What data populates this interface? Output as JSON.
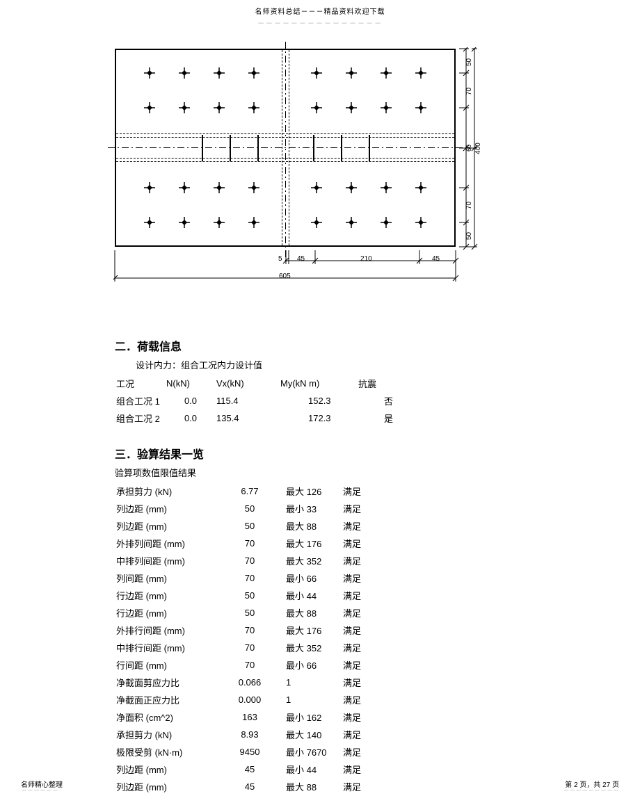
{
  "header": {
    "title": "名师资料总结－－－精品资料欢迎下载"
  },
  "diagram": {
    "plate_width": 605,
    "plate_height": 400,
    "dims_v": [
      {
        "label": "50"
      },
      {
        "label": "70"
      },
      {
        "label": "60"
      },
      {
        "label": "70"
      },
      {
        "label": "50"
      }
    ],
    "dim_v_total": "400",
    "dims_h": [
      {
        "label": "5"
      },
      {
        "label": "45"
      },
      {
        "label": "210"
      },
      {
        "label": "45"
      }
    ],
    "dim_h_total": "605"
  },
  "load": {
    "title": "二．荷载信息",
    "subtitle": "设计内力：组合工况内力设计值",
    "headers": [
      "工况",
      "N(kN)",
      "Vx(kN)",
      "My(kN m)",
      "抗震"
    ],
    "rows": [
      {
        "case": "组合工况 1",
        "n": "0.0",
        "vx": "115.4",
        "my": "152.3",
        "seismic": "否"
      },
      {
        "case": "组合工况 2",
        "n": "0.0",
        "vx": "135.4",
        "my": "172.3",
        "seismic": "是"
      }
    ]
  },
  "results": {
    "title": "三．验算结果一览",
    "header_line": "验算项数值限值结果",
    "ok": "满足",
    "rows": [
      {
        "item": "承担剪力 (kN)",
        "val": "6.77",
        "limit": "最大 126",
        "res": "满足"
      },
      {
        "item": "列边距 (mm)",
        "val": "50",
        "limit": "最小 33",
        "res": "满足"
      },
      {
        "item": "列边距 (mm)",
        "val": "50",
        "limit": "最大 88",
        "res": "满足"
      },
      {
        "item": "外排列间距 (mm)",
        "val": "70",
        "limit": "最大 176",
        "res": "满足"
      },
      {
        "item": "中排列间距 (mm)",
        "val": "70",
        "limit": "最大 352",
        "res": "满足"
      },
      {
        "item": "列间距 (mm)",
        "val": "70",
        "limit": "最小 66",
        "res": "满足"
      },
      {
        "item": "行边距 (mm)",
        "val": "50",
        "limit": "最小 44",
        "res": "满足"
      },
      {
        "item": "行边距 (mm)",
        "val": "50",
        "limit": "最大 88",
        "res": "满足"
      },
      {
        "item": "外排行间距 (mm)",
        "val": "70",
        "limit": "最大 176",
        "res": "满足"
      },
      {
        "item": "中排行间距 (mm)",
        "val": "70",
        "limit": "最大 352",
        "res": "满足"
      },
      {
        "item": "行间距 (mm)",
        "val": "70",
        "limit": "最小 66",
        "res": "满足"
      },
      {
        "item": "净截面剪应力比",
        "val": "0.066",
        "limit": "1",
        "res": "满足"
      },
      {
        "item": "净截面正应力比",
        "val": "0.000",
        "limit": "1",
        "res": "满足"
      },
      {
        "item": "净面积 (cm^2)",
        "val": "163",
        "limit": "最小 162",
        "res": "满足"
      },
      {
        "item": "承担剪力 (kN)",
        "val": "8.93",
        "limit": "最大 140",
        "res": "满足"
      },
      {
        "item": "极限受剪 (kN·m)",
        "val": "9450",
        "limit": "最小 7670",
        "res": "满足"
      },
      {
        "item": "列边距 (mm)",
        "val": "45",
        "limit": "最小 44",
        "res": "满足"
      },
      {
        "item": "列边距 (mm)",
        "val": "45",
        "limit": "最大 88",
        "res": "满足"
      }
    ]
  },
  "footer": {
    "left": "名师精心整理",
    "right": "第 2 页，共 27 页"
  }
}
